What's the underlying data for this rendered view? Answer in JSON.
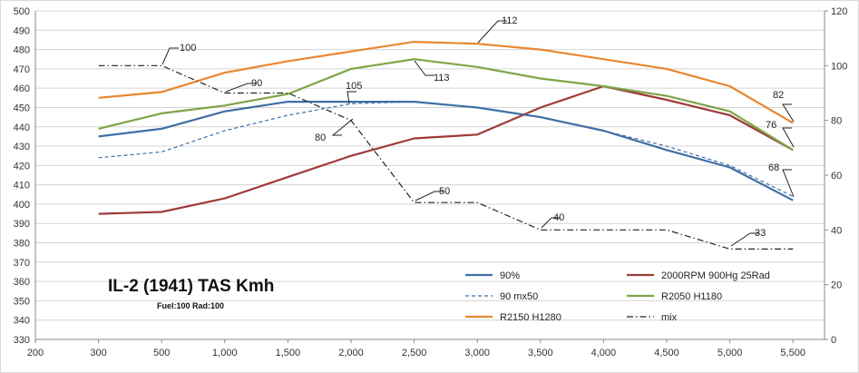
{
  "chart_data": {
    "type": "line",
    "title": "IL-2 (1941) TAS Kmh",
    "subtitle": "Fuel:100 Rad:100",
    "x": [
      300,
      500,
      1000,
      1500,
      2000,
      2500,
      3000,
      3500,
      4000,
      4500,
      5000,
      5500
    ],
    "x_tick_labels": [
      "200",
      "300",
      "500",
      "1,000",
      "1,500",
      "2,000",
      "2,500",
      "3,000",
      "3,500",
      "4,000",
      "4,500",
      "5,000",
      "5,500"
    ],
    "y_left": {
      "min": 330,
      "max": 500,
      "step": 10
    },
    "y_right": {
      "min": 0,
      "max": 120,
      "step": 20
    },
    "grid": "horizontal",
    "legend_position": "bottom-right",
    "series": [
      {
        "name": "90%",
        "axis": "left",
        "color": "#3f6ea5",
        "style": "solid",
        "values": [
          435,
          439,
          448,
          453,
          453,
          453,
          450,
          445,
          438,
          428,
          419,
          402
        ]
      },
      {
        "name": "2000RPM 900Hg 25Rad",
        "axis": "left",
        "color": "#9e3b39",
        "style": "solid",
        "values": [
          395,
          396,
          403,
          414,
          425,
          434,
          436,
          450,
          461,
          454,
          446,
          428
        ]
      },
      {
        "name": "90 mx50",
        "axis": "left",
        "color": "#3f6ea5",
        "style": "dashed",
        "values": [
          424,
          427,
          438,
          446,
          452,
          453,
          450,
          445,
          438,
          430,
          420,
          404
        ]
      },
      {
        "name": "R2050 H1180",
        "axis": "left",
        "color": "#7ea446",
        "style": "solid",
        "values": [
          439,
          447,
          451,
          457,
          470,
          475,
          471,
          465,
          461,
          456,
          448,
          428
        ]
      },
      {
        "name": "R2150 H1280",
        "axis": "left",
        "color": "#e98631",
        "style": "solid",
        "values": [
          455,
          458,
          468,
          474,
          479,
          484,
          483,
          480,
          475,
          470,
          461,
          442
        ]
      },
      {
        "name": "mix",
        "axis": "right",
        "color": "#222222",
        "style": "dashdot",
        "values": [
          100,
          100,
          90,
          90,
          80,
          50,
          50,
          40,
          40,
          40,
          33,
          33
        ]
      }
    ],
    "annotations": [
      {
        "text": "100"
      },
      {
        "text": "90"
      },
      {
        "text": "105"
      },
      {
        "text": "80"
      },
      {
        "text": "112"
      },
      {
        "text": "113"
      },
      {
        "text": "50"
      },
      {
        "text": "40"
      },
      {
        "text": "33"
      },
      {
        "text": "82"
      },
      {
        "text": "76"
      },
      {
        "text": "68"
      }
    ]
  }
}
